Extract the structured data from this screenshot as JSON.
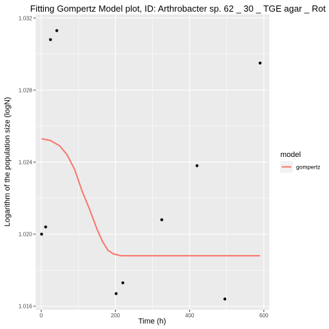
{
  "chart_data": {
    "type": "scatter",
    "title": "Fitting Gompertz Model plot, ID: Arthrobacter sp. 62 _ 30 _ TGE agar _ Rot",
    "xlabel": "Time (h)",
    "ylabel": "Logarithm of the population size (logN)",
    "xlim": [
      -15,
      615
    ],
    "ylim": [
      1.0158,
      1.0322
    ],
    "x_ticks": [
      0,
      200,
      400,
      600
    ],
    "y_ticks": [
      1.016,
      1.02,
      1.024,
      1.028,
      1.032
    ],
    "x_tick_labels": [
      "0",
      "200",
      "400",
      "600"
    ],
    "y_tick_labels": [
      "1.016",
      "1.020",
      "1.024",
      "1.028",
      "1.032"
    ],
    "grid": true,
    "legend_position": "right",
    "background": "#EBEBEB",
    "series": [
      {
        "type": "scatter",
        "color": "#000000",
        "points": [
          {
            "x": 1,
            "y": 1.02
          },
          {
            "x": 12,
            "y": 1.0204
          },
          {
            "x": 25,
            "y": 1.0308
          },
          {
            "x": 42,
            "y": 1.0313
          },
          {
            "x": 202,
            "y": 1.0167
          },
          {
            "x": 220,
            "y": 1.0173
          },
          {
            "x": 325,
            "y": 1.0208
          },
          {
            "x": 420,
            "y": 1.0238
          },
          {
            "x": 495,
            "y": 1.0164
          },
          {
            "x": 590,
            "y": 1.0295
          }
        ]
      },
      {
        "type": "line",
        "name": "gompertz",
        "color": "#F8766D",
        "points": [
          {
            "x": 1,
            "y": 1.0253
          },
          {
            "x": 25,
            "y": 1.0252
          },
          {
            "x": 50,
            "y": 1.0249
          },
          {
            "x": 70,
            "y": 1.0244
          },
          {
            "x": 90,
            "y": 1.0236
          },
          {
            "x": 110,
            "y": 1.0224
          },
          {
            "x": 130,
            "y": 1.0214
          },
          {
            "x": 150,
            "y": 1.0203
          },
          {
            "x": 165,
            "y": 1.0196
          },
          {
            "x": 180,
            "y": 1.0191
          },
          {
            "x": 195,
            "y": 1.0189
          },
          {
            "x": 215,
            "y": 1.0188
          },
          {
            "x": 250,
            "y": 1.0188
          },
          {
            "x": 350,
            "y": 1.0188
          },
          {
            "x": 450,
            "y": 1.0188
          },
          {
            "x": 590,
            "y": 1.0188
          }
        ]
      }
    ],
    "legend": {
      "title": "model",
      "entries": [
        {
          "label": "gompertz",
          "color": "#F8766D"
        }
      ]
    }
  }
}
